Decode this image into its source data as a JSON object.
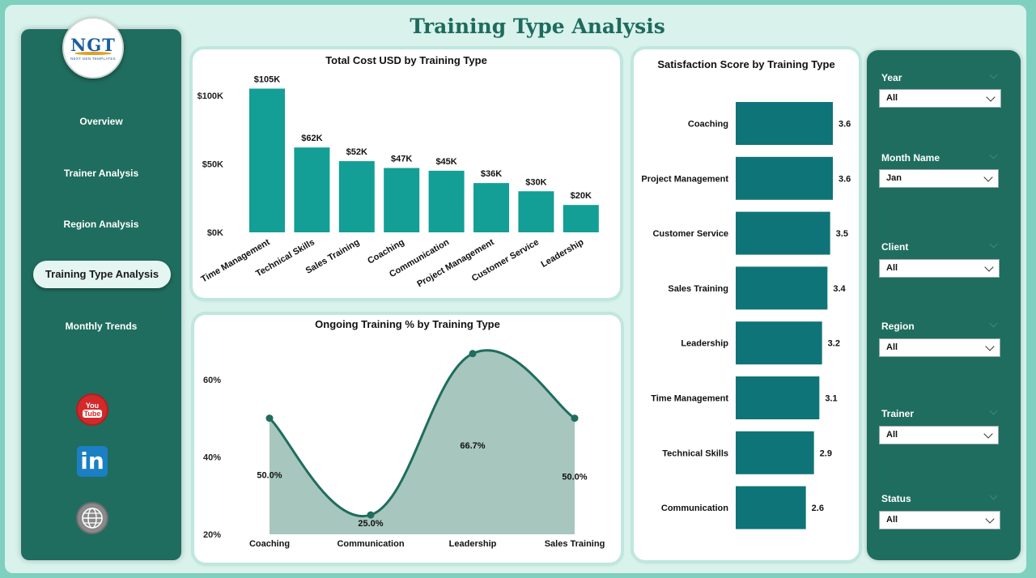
{
  "page": {
    "title": "Training Type Analysis"
  },
  "logo": {
    "main": "NGT",
    "sub": "NEXT GEN TEMPLATES"
  },
  "nav": [
    {
      "label": "Overview"
    },
    {
      "label": "Trainer Analysis"
    },
    {
      "label": "Region Analysis"
    },
    {
      "label": "Training Type Analysis",
      "active": true
    },
    {
      "label": "Monthly Trends"
    }
  ],
  "social": {
    "youtube": "You",
    "youtube_tube": "Tube",
    "linkedin": "in"
  },
  "icons": [
    "youtube-icon",
    "linkedin-icon",
    "globe-icon"
  ],
  "colors": {
    "primary": "#1f6d5e",
    "bar": "#139e96",
    "hbar": "#0f7478",
    "area": "#a7c6be",
    "line": "#1f6d5e"
  },
  "filters": [
    {
      "label": "Year",
      "value": "All"
    },
    {
      "label": "Month Name",
      "value": "Jan"
    },
    {
      "label": "Client",
      "value": "All"
    },
    {
      "label": "Region",
      "value": "All"
    },
    {
      "label": "Trainer",
      "value": "All"
    },
    {
      "label": "Status",
      "value": "All"
    }
  ],
  "chart_data": [
    {
      "type": "bar",
      "title": "Total Cost USD by Training Type",
      "categories": [
        "Time Management",
        "Technical Skills",
        "Sales Training",
        "Coaching",
        "Communication",
        "Project Management",
        "Customer Service",
        "Leadership"
      ],
      "values": [
        105000,
        62000,
        52000,
        47000,
        45000,
        36000,
        30000,
        20000
      ],
      "data_labels": [
        "$105K",
        "$62K",
        "$52K",
        "$47K",
        "$45K",
        "$36K",
        "$30K",
        "$20K"
      ],
      "y_ticks": [
        0,
        50000,
        100000
      ],
      "y_tick_labels": [
        "$0K",
        "$50K",
        "$100K"
      ],
      "ylim": [
        0,
        110000
      ]
    },
    {
      "type": "area",
      "title": "Ongoing Training % by Training Type",
      "categories": [
        "Coaching",
        "Communication",
        "Leadership",
        "Sales Training"
      ],
      "values": [
        50.0,
        25.0,
        66.7,
        50.0
      ],
      "data_labels": [
        "50.0%",
        "25.0%",
        "66.7%",
        "50.0%"
      ],
      "y_ticks": [
        20,
        40,
        60
      ],
      "y_tick_labels": [
        "20%",
        "40%",
        "60%"
      ],
      "ylim": [
        20,
        70
      ]
    },
    {
      "type": "bar",
      "orientation": "horizontal",
      "title": "Satisfaction Score by Training Type",
      "categories": [
        "Coaching",
        "Project Management",
        "Customer Service",
        "Sales Training",
        "Leadership",
        "Time Management",
        "Technical Skills",
        "Communication"
      ],
      "values": [
        3.6,
        3.6,
        3.5,
        3.4,
        3.2,
        3.1,
        2.9,
        2.6
      ],
      "data_labels": [
        "3.6",
        "3.6",
        "3.5",
        "3.4",
        "3.2",
        "3.1",
        "2.9",
        "2.6"
      ],
      "xlim": [
        0,
        3.6
      ]
    }
  ]
}
